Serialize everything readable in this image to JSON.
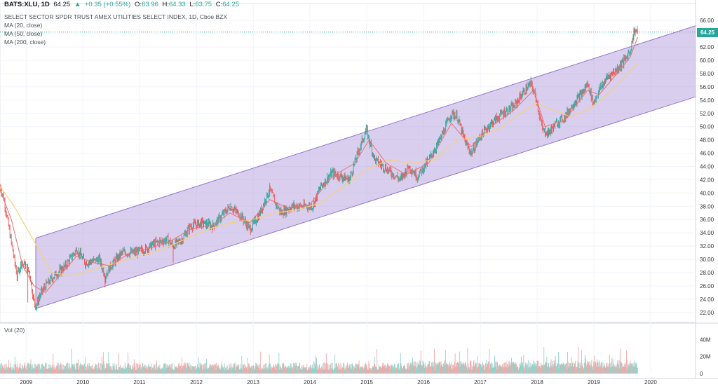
{
  "header": {
    "symbol": "BATS:XLU, 1D",
    "last": "64.25",
    "change": "+0.35 (+0.55%)",
    "o_label": "O:",
    "o": "63.96",
    "h_label": "H:",
    "h": "64.33",
    "l_label": "L:",
    "l": "63.75",
    "c_label": "C:",
    "c": "64.25"
  },
  "legend": {
    "title": "SELECT SECTOR SPDR TRUST AMEX UTILITIES SELECT INDEX, 1D, Cboe BZX",
    "ma20": "MA (20, close)",
    "ma50": "MA (50, close)",
    "ma200": "MA (200, close)"
  },
  "volume_label": "Vol (20)",
  "price_tag": "64.25",
  "colors": {
    "up": "#26a69a",
    "down": "#ef5350",
    "channel_fill": "#b39ddb",
    "channel_line": "#9575cd",
    "ma_red": "#e57373",
    "ma_yellow": "#f3d27a",
    "price_line": "#26a69a"
  },
  "chart_data": {
    "type": "line",
    "price_axis": {
      "ticks": [
        "66.00",
        "64.00",
        "62.00",
        "60.00",
        "58.00",
        "56.00",
        "54.00",
        "52.00",
        "50.00",
        "48.00",
        "46.00",
        "44.00",
        "42.00",
        "40.00",
        "38.00",
        "36.00",
        "34.00",
        "32.00",
        "30.00",
        "28.00",
        "26.00",
        "24.00",
        "22.00"
      ],
      "ylim": [
        20.5,
        67.5
      ]
    },
    "time_axis": {
      "ticks": [
        "2009",
        "2010",
        "2011",
        "2012",
        "2013",
        "2014",
        "2015",
        "2016",
        "2017",
        "2018",
        "2019",
        "2020"
      ],
      "xlim": [
        2008.55,
        2020.8
      ]
    },
    "volume_axis": {
      "ticks": [
        "40M",
        "20M",
        "0"
      ],
      "ylim": [
        0,
        55
      ]
    },
    "last_price": 64.25,
    "price_series": [
      [
        2008.55,
        41.0
      ],
      [
        2008.62,
        39.0
      ],
      [
        2008.7,
        35.0
      ],
      [
        2008.78,
        31.0
      ],
      [
        2008.85,
        27.5
      ],
      [
        2008.92,
        29.5
      ],
      [
        2009.0,
        29.0
      ],
      [
        2009.07,
        28.0
      ],
      [
        2009.13,
        24.5
      ],
      [
        2009.18,
        22.8
      ],
      [
        2009.25,
        24.5
      ],
      [
        2009.35,
        26.0
      ],
      [
        2009.5,
        27.5
      ],
      [
        2009.7,
        29.0
      ],
      [
        2009.9,
        31.5
      ],
      [
        2010.05,
        29.5
      ],
      [
        2010.3,
        30.0
      ],
      [
        2010.4,
        27.5
      ],
      [
        2010.5,
        29.0
      ],
      [
        2010.7,
        31.0
      ],
      [
        2010.9,
        31.0
      ],
      [
        2011.1,
        31.5
      ],
      [
        2011.3,
        32.5
      ],
      [
        2011.5,
        33.0
      ],
      [
        2011.6,
        32.0
      ],
      [
        2011.75,
        33.0
      ],
      [
        2011.9,
        35.0
      ],
      [
        2012.1,
        35.5
      ],
      [
        2012.3,
        35.0
      ],
      [
        2012.5,
        37.0
      ],
      [
        2012.6,
        38.0
      ],
      [
        2012.8,
        36.5
      ],
      [
        2012.95,
        34.5
      ],
      [
        2013.1,
        36.5
      ],
      [
        2013.3,
        40.5
      ],
      [
        2013.4,
        38.5
      ],
      [
        2013.5,
        37.0
      ],
      [
        2013.7,
        38.0
      ],
      [
        2013.9,
        38.0
      ],
      [
        2014.05,
        38.0
      ],
      [
        2014.2,
        41.0
      ],
      [
        2014.4,
        43.0
      ],
      [
        2014.55,
        42.5
      ],
      [
        2014.7,
        42.0
      ],
      [
        2014.85,
        46.0
      ],
      [
        2015.0,
        49.5
      ],
      [
        2015.15,
        45.0
      ],
      [
        2015.3,
        44.0
      ],
      [
        2015.45,
        43.0
      ],
      [
        2015.6,
        42.0
      ],
      [
        2015.75,
        44.0
      ],
      [
        2015.9,
        42.5
      ],
      [
        2016.1,
        45.0
      ],
      [
        2016.3,
        48.0
      ],
      [
        2016.5,
        52.0
      ],
      [
        2016.6,
        51.5
      ],
      [
        2016.75,
        47.5
      ],
      [
        2016.85,
        46.0
      ],
      [
        2017.0,
        48.5
      ],
      [
        2017.2,
        50.5
      ],
      [
        2017.4,
        52.0
      ],
      [
        2017.6,
        53.0
      ],
      [
        2017.75,
        55.0
      ],
      [
        2017.9,
        56.5
      ],
      [
        2018.0,
        54.0
      ],
      [
        2018.1,
        49.5
      ],
      [
        2018.2,
        49.0
      ],
      [
        2018.35,
        50.5
      ],
      [
        2018.5,
        51.5
      ],
      [
        2018.65,
        53.5
      ],
      [
        2018.8,
        55.0
      ],
      [
        2018.9,
        56.5
      ],
      [
        2019.0,
        53.5
      ],
      [
        2019.1,
        55.5
      ],
      [
        2019.25,
        57.5
      ],
      [
        2019.4,
        58.5
      ],
      [
        2019.55,
        60.0
      ],
      [
        2019.65,
        61.5
      ],
      [
        2019.72,
        64.5
      ],
      [
        2019.78,
        64.25
      ]
    ],
    "ma_short": [
      [
        2008.55,
        40.5
      ],
      [
        2008.75,
        36.0
      ],
      [
        2008.95,
        29.0
      ],
      [
        2009.15,
        26.0
      ],
      [
        2009.35,
        25.0
      ],
      [
        2009.6,
        27.5
      ],
      [
        2009.9,
        30.5
      ],
      [
        2010.2,
        29.5
      ],
      [
        2010.5,
        29.0
      ],
      [
        2010.8,
        30.8
      ],
      [
        2011.1,
        31.5
      ],
      [
        2011.5,
        32.5
      ],
      [
        2011.9,
        34.5
      ],
      [
        2012.3,
        35.2
      ],
      [
        2012.6,
        37.0
      ],
      [
        2012.95,
        35.5
      ],
      [
        2013.3,
        39.0
      ],
      [
        2013.6,
        37.8
      ],
      [
        2014.0,
        38.2
      ],
      [
        2014.4,
        42.5
      ],
      [
        2014.8,
        44.5
      ],
      [
        2015.05,
        48.0
      ],
      [
        2015.35,
        44.5
      ],
      [
        2015.7,
        42.8
      ],
      [
        2016.1,
        44.5
      ],
      [
        2016.5,
        50.5
      ],
      [
        2016.85,
        47.0
      ],
      [
        2017.2,
        50.0
      ],
      [
        2017.6,
        52.5
      ],
      [
        2017.95,
        55.5
      ],
      [
        2018.15,
        50.0
      ],
      [
        2018.5,
        51.0
      ],
      [
        2018.9,
        55.5
      ],
      [
        2019.1,
        54.8
      ],
      [
        2019.4,
        57.8
      ],
      [
        2019.65,
        60.5
      ],
      [
        2019.78,
        63.5
      ]
    ],
    "ma_long": [
      [
        2008.55,
        41.0
      ],
      [
        2008.8,
        38.0
      ],
      [
        2009.0,
        35.0
      ],
      [
        2009.2,
        32.0
      ],
      [
        2009.45,
        28.0
      ],
      [
        2009.8,
        27.5
      ],
      [
        2010.2,
        28.5
      ],
      [
        2010.6,
        29.5
      ],
      [
        2011.0,
        30.5
      ],
      [
        2011.4,
        31.5
      ],
      [
        2011.8,
        33.0
      ],
      [
        2012.2,
        34.5
      ],
      [
        2012.6,
        35.5
      ],
      [
        2013.0,
        36.0
      ],
      [
        2013.4,
        37.0
      ],
      [
        2013.8,
        37.5
      ],
      [
        2014.2,
        38.5
      ],
      [
        2014.6,
        41.0
      ],
      [
        2015.0,
        43.5
      ],
      [
        2015.4,
        45.0
      ],
      [
        2015.8,
        44.5
      ],
      [
        2016.2,
        45.0
      ],
      [
        2016.6,
        48.0
      ],
      [
        2017.0,
        48.5
      ],
      [
        2017.4,
        50.0
      ],
      [
        2017.8,
        52.5
      ],
      [
        2018.0,
        53.5
      ],
      [
        2018.3,
        52.5
      ],
      [
        2018.6,
        51.5
      ],
      [
        2018.9,
        52.5
      ],
      [
        2019.2,
        54.5
      ],
      [
        2019.5,
        57.0
      ],
      [
        2019.78,
        59.5
      ]
    ],
    "channel": {
      "x_start": 2009.18,
      "x_end": 2020.8,
      "upper": [
        33.2,
        65.2
      ],
      "lower": [
        22.6,
        54.5
      ]
    }
  }
}
